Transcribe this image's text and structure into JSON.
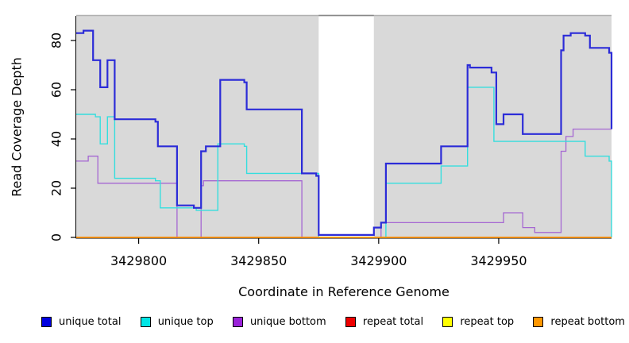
{
  "axes": {
    "ylabel": "Read Coverage Depth",
    "xlabel": "Coordinate in Reference Genome",
    "yticks": [
      0,
      20,
      40,
      60,
      80
    ],
    "xticks": [
      3429800,
      3429850,
      3429900,
      3429950
    ],
    "xlim": [
      3429774,
      3429997
    ],
    "ylim": [
      0,
      90
    ],
    "plot_bg": "#d9d9d9",
    "axis_color": "#000000",
    "top_border_color": "#b0b0b0",
    "gap_border_color": "#888888"
  },
  "chart_data": {
    "type": "line",
    "step": "after",
    "title": "",
    "xlabel": "Coordinate in Reference Genome",
    "ylabel": "Read Coverage Depth",
    "xlim": [
      3429774,
      3429997
    ],
    "ylim": [
      0,
      90
    ],
    "gap_region": [
      3429875,
      3429898
    ],
    "grid": false,
    "legend_position": "bottom",
    "draw_order": [
      "repeat total",
      "repeat top",
      "unique bottom",
      "unique top",
      "unique total",
      "repeat bottom"
    ],
    "series": [
      {
        "name": "unique total",
        "color": "#2c2cd8",
        "legend_color": "#0000e0",
        "width": 2.2,
        "points": [
          [
            3429774,
            83
          ],
          [
            3429777,
            84
          ],
          [
            3429781,
            72
          ],
          [
            3429784,
            61
          ],
          [
            3429787,
            72
          ],
          [
            3429790,
            48
          ],
          [
            3429807,
            47
          ],
          [
            3429808,
            37
          ],
          [
            3429816,
            13
          ],
          [
            3429823,
            12
          ],
          [
            3429826,
            35
          ],
          [
            3429828,
            37
          ],
          [
            3429834,
            64
          ],
          [
            3429844,
            63
          ],
          [
            3429845,
            52
          ],
          [
            3429868,
            26
          ],
          [
            3429874,
            25
          ],
          [
            3429875,
            1
          ],
          [
            3429898,
            4
          ],
          [
            3429901,
            6
          ],
          [
            3429903,
            30
          ],
          [
            3429926,
            37
          ],
          [
            3429937,
            70
          ],
          [
            3429938,
            69
          ],
          [
            3429947,
            67
          ],
          [
            3429949,
            46
          ],
          [
            3429952,
            50
          ],
          [
            3429960,
            42
          ],
          [
            3429976,
            76
          ],
          [
            3429977,
            82
          ],
          [
            3429980,
            83
          ],
          [
            3429986,
            82
          ],
          [
            3429988,
            77
          ],
          [
            3429996,
            75
          ],
          [
            3429997,
            44
          ]
        ]
      },
      {
        "name": "unique top",
        "color": "#35dede",
        "legend_color": "#00e5e5",
        "width": 1.4,
        "points": [
          [
            3429774,
            50
          ],
          [
            3429782,
            49
          ],
          [
            3429784,
            38
          ],
          [
            3429787,
            49
          ],
          [
            3429790,
            24
          ],
          [
            3429807,
            23
          ],
          [
            3429809,
            12
          ],
          [
            3429824,
            11
          ],
          [
            3429833,
            38
          ],
          [
            3429844,
            37
          ],
          [
            3429845,
            26
          ],
          [
            3429875,
            0
          ],
          [
            3429903,
            22
          ],
          [
            3429926,
            29
          ],
          [
            3429937,
            61
          ],
          [
            3429948,
            39
          ],
          [
            3429986,
            33
          ],
          [
            3429996,
            31
          ],
          [
            3429997,
            0
          ]
        ]
      },
      {
        "name": "unique bottom",
        "color": "#a567d2",
        "legend_color": "#9a22d9",
        "width": 1.3,
        "points": [
          [
            3429774,
            31
          ],
          [
            3429779,
            33
          ],
          [
            3429783,
            22
          ],
          [
            3429816,
            0
          ],
          [
            3429826,
            21
          ],
          [
            3429827,
            23
          ],
          [
            3429868,
            0
          ],
          [
            3429901,
            6
          ],
          [
            3429952,
            10
          ],
          [
            3429960,
            4
          ],
          [
            3429965,
            2
          ],
          [
            3429976,
            35
          ],
          [
            3429978,
            41
          ],
          [
            3429981,
            44
          ],
          [
            3429997,
            44
          ]
        ]
      },
      {
        "name": "repeat total",
        "color": "#cc0000",
        "legend_color": "#ee0000",
        "width": 1,
        "points": [
          [
            3429774,
            0
          ],
          [
            3429997,
            0
          ]
        ]
      },
      {
        "name": "repeat top",
        "color": "#eeee00",
        "legend_color": "#ffff00",
        "width": 1,
        "points": [
          [
            3429774,
            0
          ],
          [
            3429997,
            0
          ]
        ]
      },
      {
        "name": "repeat bottom",
        "color": "#ff9100",
        "legend_color": "#ff9700",
        "width": 1.7,
        "points": [
          [
            3429774,
            0
          ],
          [
            3429997,
            0
          ]
        ]
      }
    ]
  },
  "legend": {
    "items": [
      {
        "label": "unique total",
        "color": "#0000e0"
      },
      {
        "label": "unique top",
        "color": "#00e5e5"
      },
      {
        "label": "unique bottom",
        "color": "#9a22d9"
      },
      {
        "label": "repeat total",
        "color": "#ee0000"
      },
      {
        "label": "repeat top",
        "color": "#ffff00"
      },
      {
        "label": "repeat bottom",
        "color": "#ff9700"
      }
    ]
  }
}
